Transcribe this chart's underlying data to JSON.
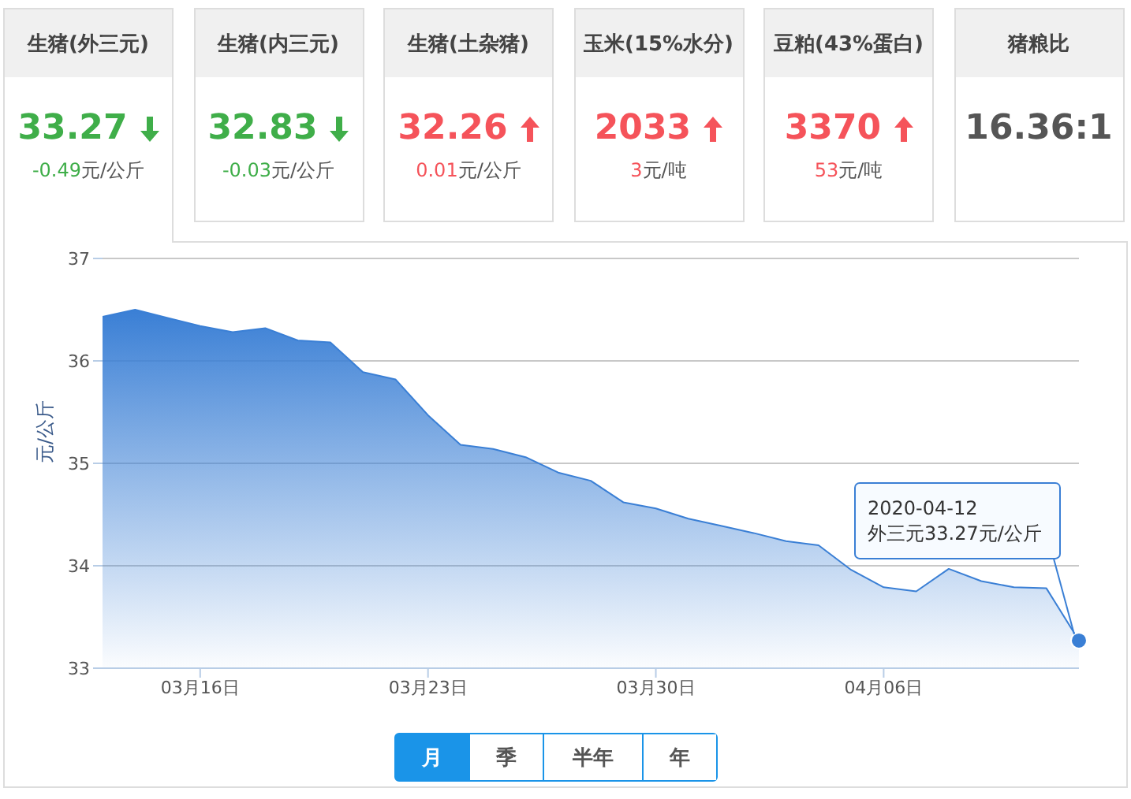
{
  "chart_data": [
    {
      "type": "other",
      "title": "生猪(外三元)",
      "annotations": [
        "33.27",
        "-0.49元/公斤"
      ],
      "color": "#3fae49"
    },
    {
      "type": "other",
      "title": "生猪(内三元)",
      "annotations": [
        "32.83",
        "-0.03元/公斤"
      ],
      "color": "#3fae49"
    },
    {
      "type": "other",
      "title": "生猪(土杂猪)",
      "annotations": [
        "32.26",
        "0.01元/公斤"
      ],
      "color": "#f5535a"
    },
    {
      "type": "other",
      "title": "玉米(15%水分)",
      "annotations": [
        "2033",
        "3元/吨"
      ],
      "color": "#f5535a"
    },
    {
      "type": "other",
      "title": "豆粕(43%蛋白)",
      "annotations": [
        "3370",
        "53元/吨"
      ],
      "color": "#f5535a"
    },
    {
      "type": "other",
      "title": "猪粮比",
      "annotations": [
        "16.36:1"
      ],
      "color": "#555555"
    },
    {
      "type": "area",
      "ylabel": "元/公斤",
      "color": "#3a7fd5",
      "grid": "y",
      "marker": "none",
      "x": [
        "2020-03-13",
        "2020-03-14",
        "2020-03-15",
        "2020-03-16",
        "2020-03-17",
        "2020-03-18",
        "2020-03-19",
        "2020-03-20",
        "2020-03-21",
        "2020-03-22",
        "2020-03-23",
        "2020-03-24",
        "2020-03-25",
        "2020-03-26",
        "2020-03-27",
        "2020-03-28",
        "2020-03-29",
        "2020-03-30",
        "2020-03-31",
        "2020-04-01",
        "2020-04-02",
        "2020-04-03",
        "2020-04-04",
        "2020-04-05",
        "2020-04-06",
        "2020-04-07",
        "2020-04-08",
        "2020-04-09",
        "2020-04-10",
        "2020-04-11",
        "2020-04-12"
      ],
      "values": [
        36.43,
        36.5,
        36.42,
        36.34,
        36.28,
        36.32,
        36.2,
        36.18,
        35.89,
        35.82,
        35.47,
        35.18,
        35.14,
        35.06,
        34.91,
        34.83,
        34.62,
        34.56,
        34.46,
        34.39,
        34.32,
        34.24,
        34.2,
        33.96,
        33.79,
        33.75,
        33.97,
        33.85,
        33.79,
        33.78,
        33.27
      ],
      "xlim": [
        "2020-03-13",
        "2020-04-12"
      ],
      "xticks": [
        {
          "value": "2020-03-16",
          "label": "03月16日"
        },
        {
          "value": "2020-03-23",
          "label": "03月23日"
        },
        {
          "value": "2020-03-30",
          "label": "03月30日"
        },
        {
          "value": "2020-04-06",
          "label": "04月06日"
        }
      ],
      "ylim": [
        33,
        37
      ],
      "yticks": [
        33,
        34,
        35,
        36,
        37
      ],
      "annotations": [
        {
          "text": "2020-04-12\n外三元33.27元/公斤",
          "x": "2020-04-12",
          "y": 33.27
        }
      ]
    },
    {
      "type": "other",
      "annotations": [
        "月",
        "季",
        "半年",
        "年"
      ]
    }
  ]
}
